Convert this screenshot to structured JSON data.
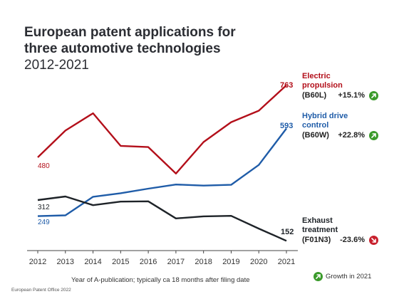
{
  "header": {
    "title": "European patent applications for three automotive technologies",
    "subtitle": "2012-2021"
  },
  "colors": {
    "electric": "#b30f1a",
    "hybrid": "#1f5ca8",
    "exhaust": "#1e2328",
    "growth_up": "#3a9a2a",
    "growth_down": "#c8202d"
  },
  "series_labels": {
    "electric": {
      "name_line1": "Electric",
      "name_line2": "propulsion",
      "code": "(B60L)",
      "growth": "+15.1%",
      "growth_icon": "arrow-up-right-icon"
    },
    "hybrid": {
      "name_line1": "Hybrid drive",
      "name_line2": "control",
      "code": "(B60W)",
      "growth": "+22.8%",
      "growth_icon": "arrow-up-right-icon"
    },
    "exhaust": {
      "name_line1": "Exhaust",
      "name_line2": "treatment",
      "code": "(F01N3)",
      "growth": "-23.6%",
      "growth_icon": "arrow-down-right-icon"
    }
  },
  "value_labels": {
    "electric_start": "480",
    "electric_end": "763",
    "hybrid_start": "249",
    "hybrid_end": "593",
    "exhaust_start": "312",
    "exhaust_end": "152"
  },
  "x_caption": "Year of A-publication; typically ca 18 months after filing date",
  "footer": "European Patent Office 2022",
  "legend": {
    "label": "Growth in 2021",
    "icon": "arrow-up-right-icon"
  },
  "chart_data": {
    "type": "line",
    "x": [
      2012,
      2013,
      2014,
      2015,
      2016,
      2017,
      2018,
      2019,
      2020,
      2021
    ],
    "series": [
      {
        "name": "Electric propulsion (B60L)",
        "values": [
          480,
          585,
          653,
          525,
          520,
          416,
          540,
          618,
          663,
          763
        ]
      },
      {
        "name": "Hybrid drive control (B60W)",
        "values": [
          249,
          252,
          325,
          339,
          357,
          373,
          369,
          372,
          450,
          593
        ]
      },
      {
        "name": "Exhaust treatment (F01N3)",
        "values": [
          312,
          326,
          292,
          306,
          307,
          240,
          248,
          250,
          200,
          152
        ]
      }
    ],
    "xlabel": "Year of A-publication; typically ca 18 months after filing date",
    "ylabel": "",
    "grid": false
  }
}
